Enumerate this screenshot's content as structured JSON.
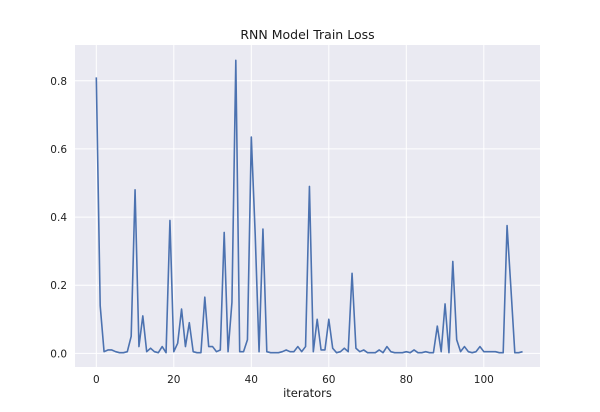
{
  "chart_data": {
    "type": "line",
    "title": "RNN Model Train Loss",
    "xlabel": "iterators",
    "ylabel": "",
    "xlim": [
      -5.5,
      114.5
    ],
    "ylim": [
      -0.04,
      0.905
    ],
    "x_ticks": [
      0,
      20,
      40,
      60,
      80,
      100
    ],
    "y_ticks": [
      0.0,
      0.2,
      0.4,
      0.6,
      0.8
    ],
    "x_tick_labels": [
      "0",
      "20",
      "40",
      "60",
      "80",
      "100"
    ],
    "y_tick_labels": [
      "0.0",
      "0.2",
      "0.4",
      "0.6",
      "0.8"
    ],
    "grid": true,
    "legend": false,
    "colors": {
      "background": "#eaeaf2",
      "grid": "#ffffff",
      "line": "#4c72b0"
    },
    "series": [
      {
        "values": [
          0.81,
          0.14,
          0.005,
          0.01,
          0.01,
          0.005,
          0.002,
          0.002,
          0.005,
          0.05,
          0.48,
          0.02,
          0.11,
          0.005,
          0.015,
          0.005,
          0.002,
          0.02,
          0.002,
          0.39,
          0.005,
          0.03,
          0.13,
          0.02,
          0.09,
          0.005,
          0.002,
          0.002,
          0.165,
          0.02,
          0.02,
          0.005,
          0.01,
          0.355,
          0.005,
          0.15,
          0.86,
          0.005,
          0.005,
          0.04,
          0.635,
          0.35,
          0.005,
          0.365,
          0.005,
          0.002,
          0.002,
          0.002,
          0.005,
          0.01,
          0.005,
          0.005,
          0.02,
          0.005,
          0.02,
          0.49,
          0.005,
          0.1,
          0.01,
          0.01,
          0.1,
          0.015,
          0.002,
          0.005,
          0.015,
          0.005,
          0.235,
          0.015,
          0.005,
          0.01,
          0.002,
          0.002,
          0.002,
          0.01,
          0.002,
          0.02,
          0.005,
          0.002,
          0.002,
          0.002,
          0.005,
          0.002,
          0.01,
          0.002,
          0.002,
          0.005,
          0.002,
          0.002,
          0.08,
          0.005,
          0.145,
          0.002,
          0.27,
          0.04,
          0.005,
          0.02,
          0.005,
          0.002,
          0.005,
          0.02,
          0.005,
          0.005,
          0.005,
          0.005,
          0.002,
          0.002,
          0.375,
          0.19,
          0.002,
          0.002,
          0.005
        ]
      }
    ]
  }
}
